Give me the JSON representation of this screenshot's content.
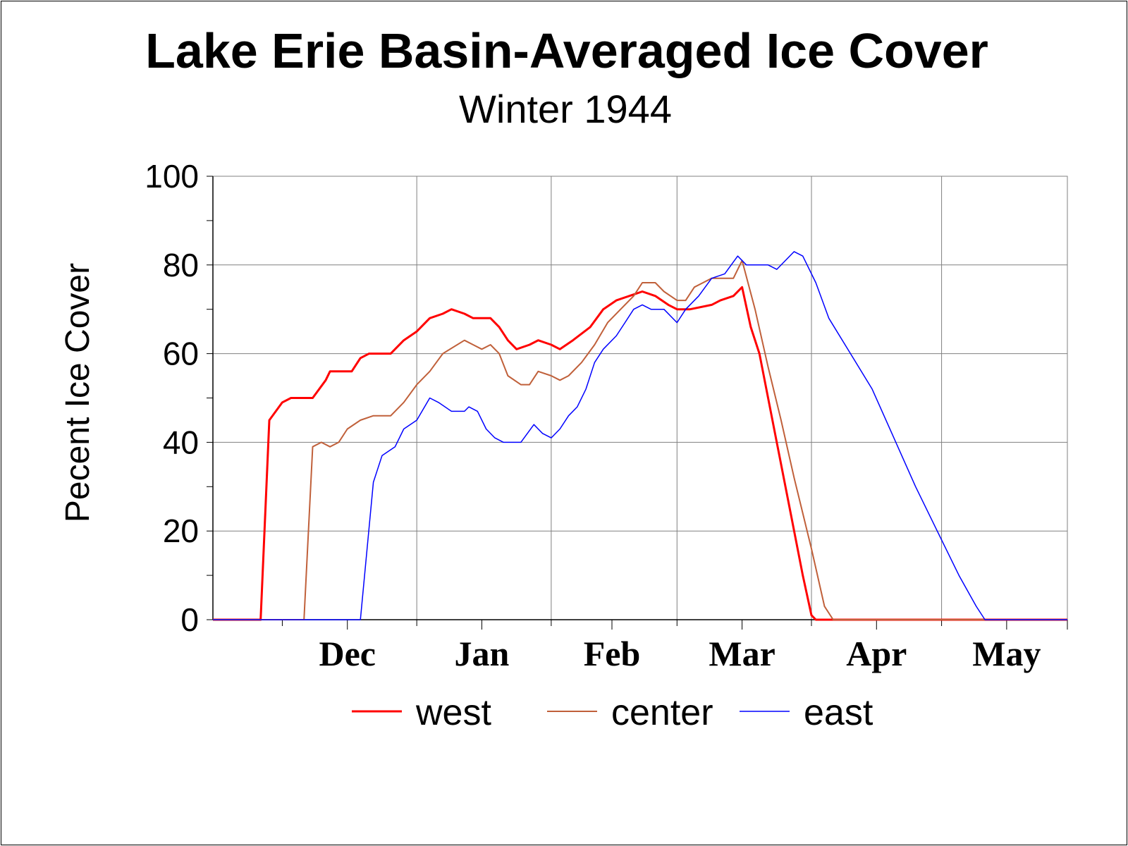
{
  "colors": {
    "west": "#ff0000",
    "center": "#c0603a",
    "east": "#0000ff",
    "grid": "#808080",
    "axis": "#000000"
  },
  "chart_data": {
    "type": "line",
    "title": "Lake Erie Basin-Averaged Ice Cover",
    "subtitle": "Winter 1944",
    "ylabel": "Pecent Ice Cover",
    "xlabel": "",
    "ylim": [
      0,
      100
    ],
    "yticks": [
      "0",
      "20",
      "40",
      "60",
      "80",
      "100"
    ],
    "xlim": [
      "Nov 15",
      "May 30"
    ],
    "x_month_labels": [
      "Dec",
      "Jan",
      "Feb",
      "Mar",
      "Apr",
      "May"
    ],
    "grid": true,
    "legend_position": "bottom",
    "series": [
      {
        "name": "west",
        "color": "#ff0000",
        "points": [
          [
            "Nov 15",
            0
          ],
          [
            "Nov 26",
            0
          ],
          [
            "Nov 28",
            45
          ],
          [
            "Dec 1",
            49
          ],
          [
            "Dec 3",
            50
          ],
          [
            "Dec 8",
            50
          ],
          [
            "Dec 11",
            54
          ],
          [
            "Dec 12",
            56
          ],
          [
            "Dec 17",
            56
          ],
          [
            "Dec 19",
            59
          ],
          [
            "Dec 21",
            60
          ],
          [
            "Dec 26",
            60
          ],
          [
            "Dec 29",
            63
          ],
          [
            "Jan 1",
            65
          ],
          [
            "Jan 4",
            68
          ],
          [
            "Jan 7",
            69
          ],
          [
            "Jan 9",
            70
          ],
          [
            "Jan 12",
            69
          ],
          [
            "Jan 14",
            68
          ],
          [
            "Jan 18",
            68
          ],
          [
            "Jan 20",
            66
          ],
          [
            "Jan 22",
            63
          ],
          [
            "Jan 24",
            61
          ],
          [
            "Jan 27",
            62
          ],
          [
            "Jan 29",
            63
          ],
          [
            "Feb 1",
            62
          ],
          [
            "Feb 3",
            61
          ],
          [
            "Feb 6",
            63
          ],
          [
            "Feb 10",
            66
          ],
          [
            "Feb 13",
            70
          ],
          [
            "Feb 16",
            72
          ],
          [
            "Feb 19",
            73
          ],
          [
            "Feb 22",
            74
          ],
          [
            "Feb 25",
            73
          ],
          [
            "Feb 28",
            71
          ],
          [
            "Mar 1",
            70
          ],
          [
            "Mar 4",
            70
          ],
          [
            "Mar 9",
            71
          ],
          [
            "Mar 11",
            72
          ],
          [
            "Mar 14",
            73
          ],
          [
            "Mar 16",
            75
          ],
          [
            "Mar 18",
            66
          ],
          [
            "Mar 20",
            60
          ],
          [
            "Mar 22",
            50
          ],
          [
            "Mar 24",
            40
          ],
          [
            "Mar 27",
            25
          ],
          [
            "Mar 30",
            10
          ],
          [
            "Apr 1",
            1
          ],
          [
            "Apr 2",
            0
          ],
          [
            "May 30",
            0
          ]
        ]
      },
      {
        "name": "center",
        "color": "#c0603a",
        "points": [
          [
            "Nov 15",
            0
          ],
          [
            "Dec 6",
            0
          ],
          [
            "Dec 8",
            39
          ],
          [
            "Dec 10",
            40
          ],
          [
            "Dec 12",
            39
          ],
          [
            "Dec 14",
            40
          ],
          [
            "Dec 16",
            43
          ],
          [
            "Dec 19",
            45
          ],
          [
            "Dec 22",
            46
          ],
          [
            "Dec 26",
            46
          ],
          [
            "Dec 29",
            49
          ],
          [
            "Jan 1",
            53
          ],
          [
            "Jan 4",
            56
          ],
          [
            "Jan 7",
            60
          ],
          [
            "Jan 12",
            63
          ],
          [
            "Jan 14",
            62
          ],
          [
            "Jan 16",
            61
          ],
          [
            "Jan 18",
            62
          ],
          [
            "Jan 20",
            60
          ],
          [
            "Jan 22",
            55
          ],
          [
            "Jan 25",
            53
          ],
          [
            "Jan 27",
            53
          ],
          [
            "Jan 29",
            56
          ],
          [
            "Feb 1",
            55
          ],
          [
            "Feb 3",
            54
          ],
          [
            "Feb 5",
            55
          ],
          [
            "Feb 8",
            58
          ],
          [
            "Feb 11",
            62
          ],
          [
            "Feb 14",
            67
          ],
          [
            "Feb 17",
            70
          ],
          [
            "Feb 20",
            73
          ],
          [
            "Feb 22",
            76
          ],
          [
            "Feb 25",
            76
          ],
          [
            "Feb 27",
            74
          ],
          [
            "Mar 1",
            72
          ],
          [
            "Mar 3",
            72
          ],
          [
            "Mar 5",
            75
          ],
          [
            "Mar 7",
            76
          ],
          [
            "Mar 9",
            77
          ],
          [
            "Mar 14",
            77
          ],
          [
            "Mar 16",
            81
          ],
          [
            "Mar 19",
            70
          ],
          [
            "Mar 22",
            57
          ],
          [
            "Mar 25",
            45
          ],
          [
            "Mar 28",
            32
          ],
          [
            "Apr 1",
            16
          ],
          [
            "Apr 4",
            3
          ],
          [
            "Apr 6",
            0
          ],
          [
            "May 30",
            0
          ]
        ]
      },
      {
        "name": "east",
        "color": "#0000ff",
        "points": [
          [
            "Nov 15",
            0
          ],
          [
            "Dec 19",
            0
          ],
          [
            "Dec 22",
            31
          ],
          [
            "Dec 24",
            37
          ],
          [
            "Dec 27",
            39
          ],
          [
            "Dec 29",
            43
          ],
          [
            "Jan 1",
            45
          ],
          [
            "Jan 4",
            50
          ],
          [
            "Jan 6",
            49
          ],
          [
            "Jan 9",
            47
          ],
          [
            "Jan 12",
            47
          ],
          [
            "Jan 13",
            48
          ],
          [
            "Jan 15",
            47
          ],
          [
            "Jan 17",
            43
          ],
          [
            "Jan 19",
            41
          ],
          [
            "Jan 21",
            40
          ],
          [
            "Jan 25",
            40
          ],
          [
            "Jan 28",
            44
          ],
          [
            "Jan 30",
            42
          ],
          [
            "Feb 1",
            41
          ],
          [
            "Feb 3",
            43
          ],
          [
            "Feb 5",
            46
          ],
          [
            "Feb 7",
            48
          ],
          [
            "Feb 9",
            52
          ],
          [
            "Feb 11",
            58
          ],
          [
            "Feb 13",
            61
          ],
          [
            "Feb 16",
            64
          ],
          [
            "Feb 18",
            67
          ],
          [
            "Feb 20",
            70
          ],
          [
            "Feb 22",
            71
          ],
          [
            "Feb 24",
            70
          ],
          [
            "Feb 27",
            70
          ],
          [
            "Mar 1",
            67
          ],
          [
            "Mar 3",
            70
          ],
          [
            "Mar 6",
            73
          ],
          [
            "Mar 9",
            77
          ],
          [
            "Mar 12",
            78
          ],
          [
            "Mar 15",
            82
          ],
          [
            "Mar 17",
            80
          ],
          [
            "Mar 22",
            80
          ],
          [
            "Mar 24",
            79
          ],
          [
            "Mar 26",
            81
          ],
          [
            "Mar 28",
            83
          ],
          [
            "Mar 30",
            82
          ],
          [
            "Apr 2",
            76
          ],
          [
            "Apr 5",
            68
          ],
          [
            "Apr 10",
            60
          ],
          [
            "Apr 15",
            52
          ],
          [
            "Apr 20",
            41
          ],
          [
            "Apr 25",
            30
          ],
          [
            "Apr 30",
            20
          ],
          [
            "May 5",
            10
          ],
          [
            "May 9",
            3
          ],
          [
            "May 11",
            0
          ],
          [
            "May 30",
            0
          ]
        ]
      }
    ]
  }
}
